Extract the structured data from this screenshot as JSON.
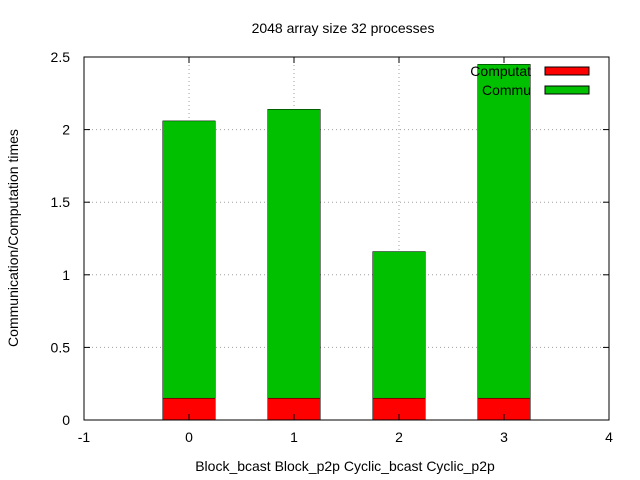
{
  "chart_data": {
    "type": "bar",
    "stacked": true,
    "title": "2048 array size 32 processes",
    "ylabel": "Communication/Computation times",
    "xlabel": "",
    "xlim": [
      -1,
      4
    ],
    "ylim": [
      0,
      2.5
    ],
    "xticks": [
      -1,
      0,
      1,
      2,
      3,
      4
    ],
    "xtick_labels": [
      "-1",
      "0",
      "1",
      "2",
      "3",
      "4"
    ],
    "yticks": [
      0,
      0.5,
      1,
      1.5,
      2,
      2.5
    ],
    "ytick_labels": [
      "0",
      "0.5",
      "1",
      "1.5",
      "2",
      "2.5"
    ],
    "grid": true,
    "legend_position": "top-right",
    "categories": [
      "Block_bcast",
      "Block_p2p",
      "Cyclic_bcast",
      "Cyclic_p2p"
    ],
    "x": [
      0,
      1,
      2,
      3
    ],
    "series": [
      {
        "name": "Computation time",
        "legend_visible_text": "Computat",
        "color": "#ff0000",
        "values": [
          0.15,
          0.15,
          0.15,
          0.15
        ]
      },
      {
        "name": "Communication time",
        "legend_visible_text": "Commu",
        "color": "#00c000",
        "values": [
          1.91,
          1.99,
          1.01,
          2.3
        ]
      }
    ]
  }
}
